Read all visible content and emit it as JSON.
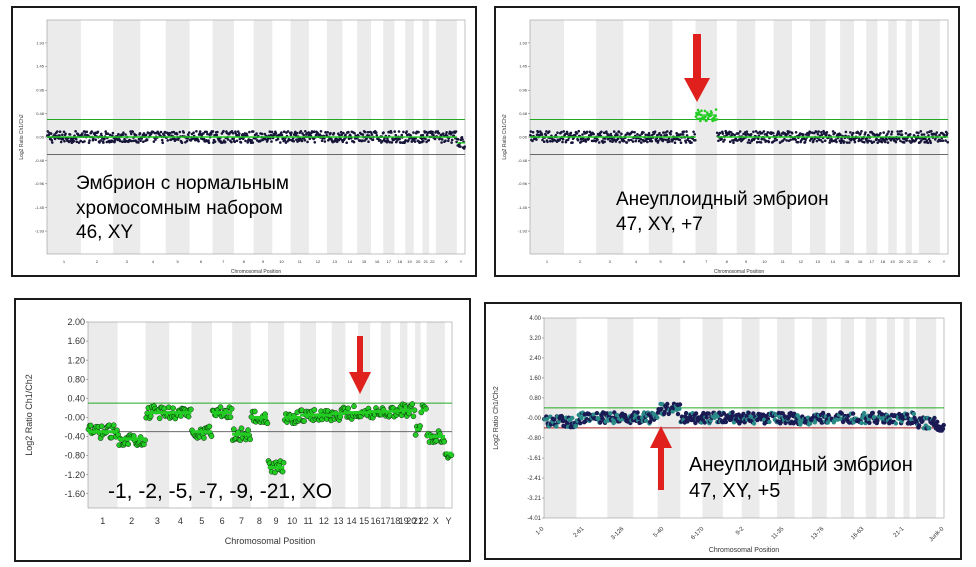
{
  "chart_data": [
    {
      "type": "scatter",
      "panel": "top-left",
      "xlabel": "Chromosomal Position",
      "ylabel": "Log2 Ratio Ch1/Ch2",
      "y_ticks": [
        "1.93",
        "1.45",
        "0.96",
        "0.48",
        "0.00",
        "-0.48",
        "-0.96",
        "-1.45",
        "-1.93"
      ],
      "x_ticks": [
        "1",
        "2",
        "3",
        "4",
        "5",
        "6",
        "7",
        "8",
        "9",
        "10",
        "11",
        "12",
        "13",
        "14",
        "15",
        "16",
        "17",
        "18",
        "19",
        "20",
        "21",
        "22",
        "X",
        "Y"
      ],
      "ylim": [
        -2.4,
        2.4
      ],
      "thresholds": [
        0.36,
        -0.36
      ],
      "segments": [
        {
          "chrom": "1",
          "level": 0.0
        },
        {
          "chrom": "2",
          "level": 0.0
        },
        {
          "chrom": "3",
          "level": 0.0
        },
        {
          "chrom": "4",
          "level": 0.0
        },
        {
          "chrom": "5",
          "level": 0.0
        },
        {
          "chrom": "6",
          "level": 0.0
        },
        {
          "chrom": "7",
          "level": 0.0
        },
        {
          "chrom": "8",
          "level": 0.0
        },
        {
          "chrom": "9",
          "level": 0.0
        },
        {
          "chrom": "10",
          "level": 0.0
        },
        {
          "chrom": "11",
          "level": 0.0
        },
        {
          "chrom": "12",
          "level": 0.0
        },
        {
          "chrom": "13",
          "level": 0.0
        },
        {
          "chrom": "14",
          "level": 0.0
        },
        {
          "chrom": "15",
          "level": 0.0
        },
        {
          "chrom": "16",
          "level": 0.0
        },
        {
          "chrom": "17",
          "level": 0.0
        },
        {
          "chrom": "18",
          "level": 0.0
        },
        {
          "chrom": "19",
          "level": 0.0
        },
        {
          "chrom": "20",
          "level": 0.0
        },
        {
          "chrom": "21",
          "level": 0.0
        },
        {
          "chrom": "22",
          "level": 0.0
        },
        {
          "chrom": "X",
          "level": 0.0
        },
        {
          "chrom": "Y",
          "level": -0.12
        }
      ],
      "caption": [
        "Эмбрион с нормальным",
        "хромосомным набором",
        "46, XY"
      ]
    },
    {
      "type": "scatter",
      "panel": "top-right",
      "xlabel": "Chromosomal Position",
      "ylabel": "Log2 Ratio Ch1/Ch2",
      "y_ticks": [
        "1.93",
        "1.45",
        "0.96",
        "0.48",
        "0.00",
        "-0.48",
        "-0.96",
        "-1.45",
        "-1.93"
      ],
      "x_ticks": [
        "1",
        "2",
        "3",
        "4",
        "5",
        "6",
        "7",
        "8",
        "9",
        "10",
        "11",
        "12",
        "13",
        "14",
        "15",
        "16",
        "17",
        "18",
        "19",
        "20",
        "21",
        "22",
        "X",
        "Y"
      ],
      "ylim": [
        -2.4,
        2.4
      ],
      "thresholds": [
        0.36,
        -0.36
      ],
      "segments": [
        {
          "chrom": "1",
          "level": 0.0
        },
        {
          "chrom": "2",
          "level": 0.0
        },
        {
          "chrom": "3",
          "level": 0.0
        },
        {
          "chrom": "4",
          "level": 0.0
        },
        {
          "chrom": "5",
          "level": 0.0
        },
        {
          "chrom": "6",
          "level": 0.0
        },
        {
          "chrom": "7",
          "level": 0.45
        },
        {
          "chrom": "8",
          "level": 0.0
        },
        {
          "chrom": "9",
          "level": 0.0
        },
        {
          "chrom": "10",
          "level": 0.0
        },
        {
          "chrom": "11",
          "level": 0.0
        },
        {
          "chrom": "12",
          "level": 0.0
        },
        {
          "chrom": "13",
          "level": 0.0
        },
        {
          "chrom": "14",
          "level": 0.0
        },
        {
          "chrom": "15",
          "level": 0.0
        },
        {
          "chrom": "16",
          "level": 0.0
        },
        {
          "chrom": "17",
          "level": 0.0
        },
        {
          "chrom": "18",
          "level": 0.0
        },
        {
          "chrom": "19",
          "level": 0.0
        },
        {
          "chrom": "20",
          "level": 0.0
        },
        {
          "chrom": "21",
          "level": 0.0
        },
        {
          "chrom": "22",
          "level": 0.0
        },
        {
          "chrom": "X",
          "level": 0.0
        },
        {
          "chrom": "Y",
          "level": 0.0
        }
      ],
      "caption": [
        "Анеуплоидный эмбрион",
        "47, XY, +7"
      ]
    },
    {
      "type": "scatter",
      "panel": "bottom-left",
      "xlabel": "Chromosomal Position",
      "ylabel": "Log2 Ratio Ch1/Ch2",
      "y_ticks": [
        "2.00",
        "1.60",
        "1.20",
        "0.80",
        "0.40",
        "-0.00",
        "-0.40",
        "-0.80",
        "-1.20",
        "-1.60"
      ],
      "x_ticks": [
        "1",
        "2",
        "3",
        "4",
        "5",
        "6",
        "7",
        "8",
        "9",
        "10",
        "11",
        "12",
        "13",
        "14",
        "15",
        "16",
        "17",
        "18",
        "19",
        "20",
        "21",
        "22",
        "X",
        "Y"
      ],
      "ylim": [
        -1.9,
        2.0
      ],
      "thresholds": [
        0.3,
        -0.3
      ],
      "segments": [
        {
          "chrom": "1",
          "level": -0.3
        },
        {
          "chrom": "2",
          "level": -0.45
        },
        {
          "chrom": "3",
          "level": 0.1
        },
        {
          "chrom": "4",
          "level": 0.1
        },
        {
          "chrom": "5",
          "level": -0.3
        },
        {
          "chrom": "6",
          "level": 0.1
        },
        {
          "chrom": "7",
          "level": -0.35
        },
        {
          "chrom": "8",
          "level": 0.0
        },
        {
          "chrom": "9",
          "level": -1.05
        },
        {
          "chrom": "10",
          "level": 0.0
        },
        {
          "chrom": "11",
          "level": 0.05
        },
        {
          "chrom": "12",
          "level": 0.05
        },
        {
          "chrom": "13",
          "level": 0.08
        },
        {
          "chrom": "14",
          "level": 0.1
        },
        {
          "chrom": "15",
          "level": 0.1
        },
        {
          "chrom": "16",
          "level": 0.12
        },
        {
          "chrom": "17",
          "level": 0.12
        },
        {
          "chrom": "18",
          "level": 0.13
        },
        {
          "chrom": "19",
          "level": 0.15
        },
        {
          "chrom": "20",
          "level": 0.15
        },
        {
          "chrom": "21",
          "level": -0.25
        },
        {
          "chrom": "22",
          "level": 0.15
        },
        {
          "chrom": "X",
          "level": -0.4
        },
        {
          "chrom": "Y",
          "level": -0.75
        }
      ],
      "caption": [
        "-1, -2, -5, -7, -9, -21, XO"
      ]
    },
    {
      "type": "scatter",
      "panel": "bottom-right",
      "xlabel": "Chromosomal Position",
      "ylabel": "Log2 Ratio Ch1/Ch2",
      "y_ticks": [
        "4.00",
        "3.20",
        "2.40",
        "1.60",
        "0.80",
        "-0.00",
        "-0.80",
        "-1.61",
        "-2.41",
        "-3.21",
        "-4.01"
      ],
      "x_ticks": [
        "1-0",
        "2-61",
        "3-126",
        "5-40",
        "6-170",
        "9-2",
        "11-35",
        "13-76",
        "16-63",
        "21-1",
        "Junk-0"
      ],
      "ylim": [
        -4.01,
        4.0
      ],
      "thresholds": [
        0.4,
        -0.4
      ],
      "segments": [
        {
          "chrom": "1",
          "level": -0.15
        },
        {
          "chrom": "2",
          "level": 0.0
        },
        {
          "chrom": "3",
          "level": 0.0
        },
        {
          "chrom": "4",
          "level": 0.0
        },
        {
          "chrom": "5",
          "level": 0.35
        },
        {
          "chrom": "6",
          "level": 0.0
        },
        {
          "chrom": "7",
          "level": 0.0
        },
        {
          "chrom": "8",
          "level": 0.0
        },
        {
          "chrom": "9",
          "level": 0.0
        },
        {
          "chrom": "10",
          "level": 0.0
        },
        {
          "chrom": "11",
          "level": 0.0
        },
        {
          "chrom": "12",
          "level": -0.1
        },
        {
          "chrom": "13",
          "level": 0.0
        },
        {
          "chrom": "14",
          "level": 0.0
        },
        {
          "chrom": "15",
          "level": 0.0
        },
        {
          "chrom": "16",
          "level": 0.0
        },
        {
          "chrom": "17",
          "level": 0.0
        },
        {
          "chrom": "18",
          "level": 0.0
        },
        {
          "chrom": "19",
          "level": 0.0
        },
        {
          "chrom": "20",
          "level": 0.0
        },
        {
          "chrom": "21",
          "level": 0.0
        },
        {
          "chrom": "22",
          "level": 0.0
        },
        {
          "chrom": "X",
          "level": -0.2
        },
        {
          "chrom": "Y",
          "level": -0.3
        }
      ],
      "caption": [
        "Анеуплоидный эмбрион",
        "47, XY, +5"
      ]
    }
  ],
  "colors": {
    "panel_border": "#1a1a1a",
    "band": "#ebebeb",
    "threshold_top": "#22aa22",
    "threshold_bottom": "#aa2222",
    "point_dark": "#16163a",
    "point_green": "#22cc22",
    "arrow": "#e0201c"
  }
}
